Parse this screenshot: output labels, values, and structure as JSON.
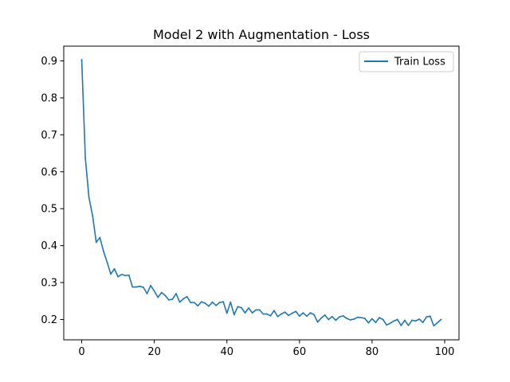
{
  "chart_data": {
    "type": "line",
    "title": "Model 2 with Augmentation - Loss",
    "xlabel": "",
    "ylabel": "",
    "xlim": [
      -4.95,
      103.95
    ],
    "ylim": [
      0.145,
      0.94
    ],
    "xticks": [
      0,
      20,
      40,
      60,
      80,
      100
    ],
    "yticks": [
      0.2,
      0.3,
      0.4,
      0.5,
      0.6,
      0.7,
      0.8,
      0.9
    ],
    "grid": false,
    "legend_position": "top-right",
    "series": [
      {
        "name": "Train Loss",
        "color": "#1f77b4",
        "x": [
          0,
          1,
          2,
          3,
          4,
          5,
          6,
          7,
          8,
          9,
          10,
          11,
          12,
          13,
          14,
          15,
          16,
          17,
          18,
          19,
          20,
          21,
          22,
          23,
          24,
          25,
          26,
          27,
          28,
          29,
          30,
          31,
          32,
          33,
          34,
          35,
          36,
          37,
          38,
          39,
          40,
          41,
          42,
          43,
          44,
          45,
          46,
          47,
          48,
          49,
          50,
          51,
          52,
          53,
          54,
          55,
          56,
          57,
          58,
          59,
          60,
          61,
          62,
          63,
          64,
          65,
          66,
          67,
          68,
          69,
          70,
          71,
          72,
          73,
          74,
          75,
          76,
          77,
          78,
          79,
          80,
          81,
          82,
          83,
          84,
          85,
          86,
          87,
          88,
          89,
          90,
          91,
          92,
          93,
          94,
          95,
          96,
          97,
          98,
          99
        ],
        "values": [
          0.903,
          0.637,
          0.53,
          0.481,
          0.409,
          0.422,
          0.385,
          0.355,
          0.323,
          0.337,
          0.316,
          0.322,
          0.319,
          0.32,
          0.288,
          0.288,
          0.29,
          0.287,
          0.27,
          0.292,
          0.277,
          0.26,
          0.273,
          0.265,
          0.253,
          0.255,
          0.27,
          0.247,
          0.256,
          0.262,
          0.246,
          0.246,
          0.237,
          0.248,
          0.244,
          0.236,
          0.247,
          0.238,
          0.246,
          0.248,
          0.217,
          0.247,
          0.213,
          0.235,
          0.232,
          0.218,
          0.231,
          0.218,
          0.226,
          0.226,
          0.215,
          0.215,
          0.21,
          0.224,
          0.208,
          0.215,
          0.22,
          0.211,
          0.217,
          0.222,
          0.209,
          0.218,
          0.209,
          0.218,
          0.213,
          0.193,
          0.204,
          0.212,
          0.2,
          0.208,
          0.198,
          0.207,
          0.21,
          0.203,
          0.199,
          0.201,
          0.206,
          0.205,
          0.203,
          0.191,
          0.202,
          0.192,
          0.205,
          0.2,
          0.185,
          0.19,
          0.196,
          0.2,
          0.184,
          0.198,
          0.184,
          0.198,
          0.196,
          0.201,
          0.192,
          0.207,
          0.209,
          0.183,
          0.191,
          0.2
        ]
      }
    ]
  }
}
